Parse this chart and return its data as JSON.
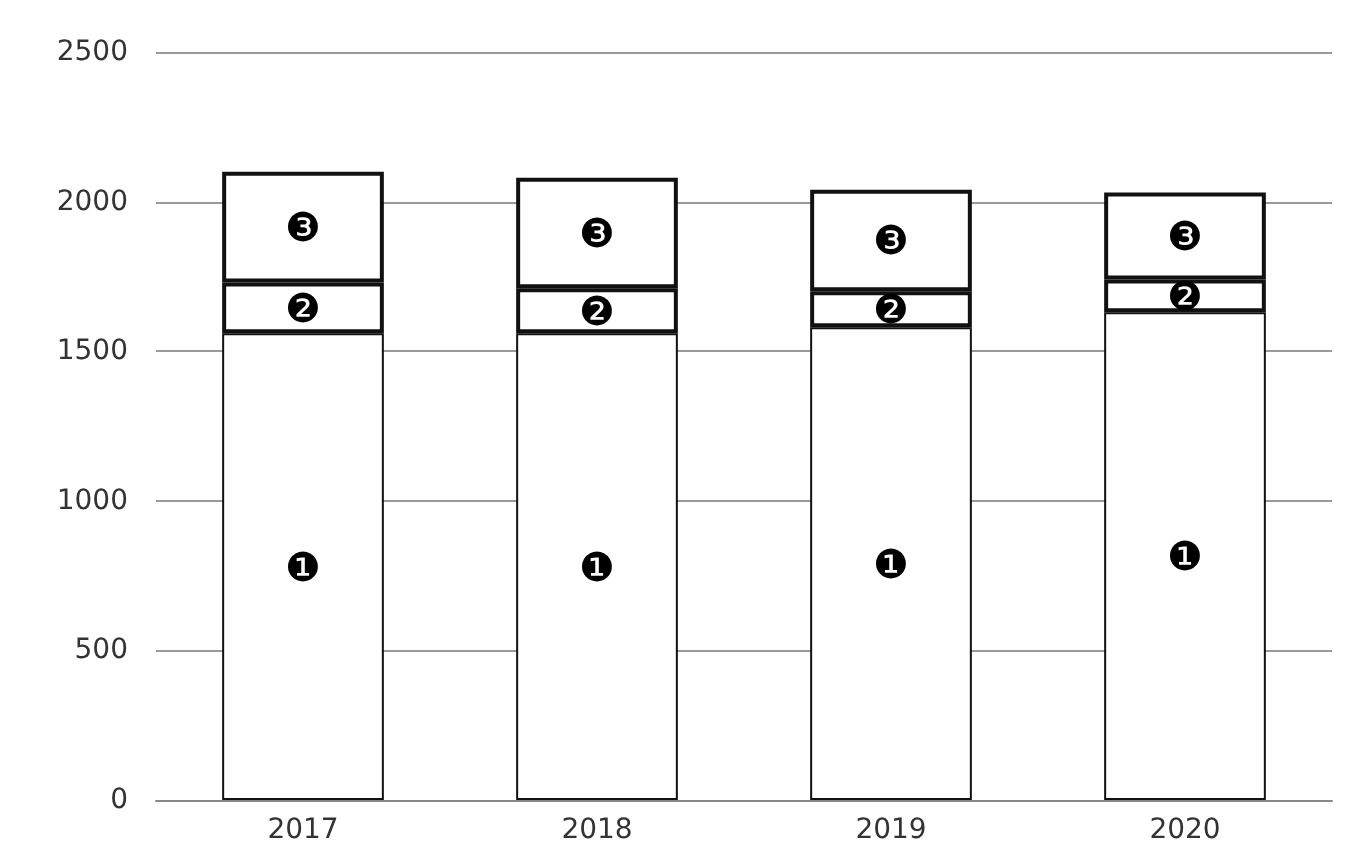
{
  "chart_data": {
    "type": "bar",
    "stacked": true,
    "categories": [
      "2017",
      "2018",
      "2019",
      "2020"
    ],
    "series": [
      {
        "name": "❶",
        "color": "#ffffff",
        "values": [
          1560,
          1560,
          1580,
          1630
        ]
      },
      {
        "name": "❷",
        "color": "#ffffff",
        "values": [
          170,
          150,
          120,
          110
        ]
      },
      {
        "name": "❸",
        "color": "#ffffff",
        "values": [
          370,
          370,
          340,
          290
        ]
      }
    ],
    "ylim": [
      0,
      2500
    ],
    "yticks": [
      0,
      500,
      1000,
      1500,
      2000,
      2500
    ],
    "grid": "y",
    "legend": false
  }
}
